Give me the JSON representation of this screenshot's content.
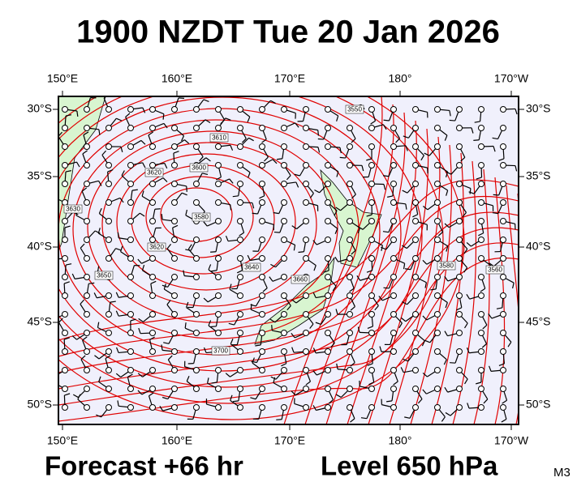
{
  "map": {
    "title": "1900 NZDT Tue 20 Jan 2026",
    "lon_labels": [
      "150°E",
      "160°E",
      "170°E",
      "180°",
      "170°W"
    ],
    "lat_labels": [
      "30°S",
      "35°S",
      "40°S",
      "45°S",
      "50°S"
    ],
    "contour_labels": [
      "3550",
      "3610",
      "3600",
      "3620",
      "3580",
      "3630",
      "3620",
      "3640",
      "3650",
      "3660",
      "3700",
      "3580",
      "3560"
    ],
    "footer": {
      "forecast": "Forecast +66 hr",
      "level": "Level 650 hPa",
      "code": "M3"
    }
  }
}
